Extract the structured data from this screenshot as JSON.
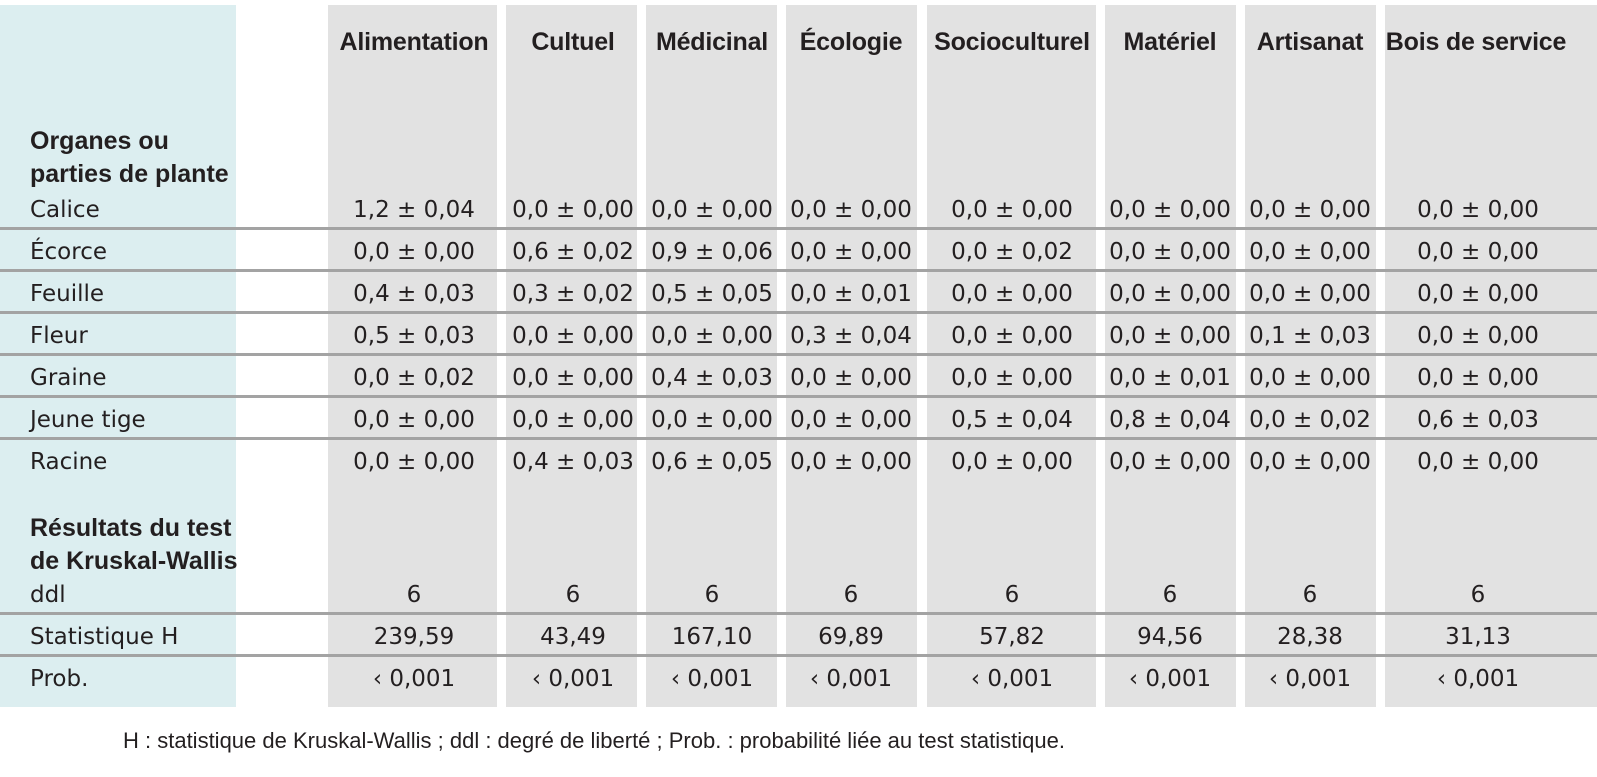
{
  "table": {
    "columns": [
      "Alimentation",
      "Cultuel",
      "Médicinal",
      "Écologie",
      "Socioculturel",
      "Matériel",
      "Artisanat",
      "Bois de service"
    ],
    "section_organs": [
      "Organes ou",
      "parties de plante"
    ],
    "organ_rows": [
      {
        "label": "Calice",
        "values": [
          "1,2 ± 0,04",
          "0,0  ±  0,00",
          "0,0 ± 0,00",
          "0,0 ± 0,00",
          "0,0 ± 0,00",
          "0,0 ± 0,00",
          "0,0 ± 0,00",
          "0,0 ± 0,00"
        ]
      },
      {
        "label": "Écorce",
        "values": [
          "0,0 ± 0,00",
          "0,6 ± 0,02",
          "0,9 ± 0,06",
          "0,0 ± 0,00",
          "0,0 ± 0,02",
          "0,0 ± 0,00",
          "0,0 ± 0,00",
          "0,0 ± 0,00"
        ]
      },
      {
        "label": "Feuille",
        "values": [
          "0,4 ± 0,03",
          "0,3 ± 0,02",
          "0,5 ± 0,05",
          "0,0 ± 0,01",
          "0,0 ± 0,00",
          "0,0 ± 0,00",
          "0,0 ± 0,00",
          "0,0 ± 0,00"
        ]
      },
      {
        "label": "Fleur",
        "values": [
          "0,5 ± 0,03",
          "0,0 ± 0,00",
          "0,0 ± 0,00",
          "0,3 ± 0,04",
          "0,0 ± 0,00",
          "0,0 ± 0,00",
          "0,1 ± 0,03",
          "0,0 ± 0,00"
        ]
      },
      {
        "label": "Graine",
        "values": [
          "0,0 ± 0,02",
          "0,0 ± 0,00",
          "0,4 ± 0,03",
          "0,0 ± 0,00",
          "0,0 ± 0,00",
          "0,0 ± 0,01",
          "0,0 ± 0,00",
          "0,0 ± 0,00"
        ]
      },
      {
        "label": "Jeune tige",
        "values": [
          "0,0 ± 0,00",
          "0,0 ± 0,00",
          "0,0 ± 0,00",
          "0,0 ± 0,00",
          "0,5 ± 0,04",
          "0,8 ± 0,04",
          "0,0 ± 0,02",
          "0,6 ± 0,03"
        ]
      },
      {
        "label": "Racine",
        "values": [
          "0,0 ± 0,00",
          "0,4 ± 0,03",
          "0,6 ± 0,05",
          "0,0 ± 0,00",
          "0,0 ± 0,00",
          "0,0 ± 0,00",
          "0,0 ± 0,00",
          "0,0 ± 0,00"
        ]
      }
    ],
    "section_test": [
      "Résultats du test",
      "de Kruskal-Wallis"
    ],
    "test_rows": [
      {
        "label": "ddl",
        "values": [
          "6",
          "6",
          "6",
          "6",
          "6",
          "6",
          "6",
          "6"
        ]
      },
      {
        "label": "Statistique H",
        "values": [
          "239,59",
          "43,49",
          "167,10",
          "69,89",
          "57,82",
          "94,56",
          "28,38",
          "31,13"
        ]
      },
      {
        "label": "Prob.",
        "values": [
          "‹ 0,001",
          "‹ 0,001",
          "‹ 0,001",
          "‹ 0,001",
          "‹ 0,001",
          "‹ 0,001",
          "‹ 0,001",
          "‹ 0,001"
        ]
      }
    ]
  },
  "footnote": "H : statistique de Kruskal-Wallis ; ddl : degré de liberté ; Prob. : probabilité liée au test statistique.",
  "colors": {
    "label_column": "#dceef0",
    "data_column": "#e2e2e2",
    "separator": "#a3a3a3",
    "text": "#231f20"
  }
}
